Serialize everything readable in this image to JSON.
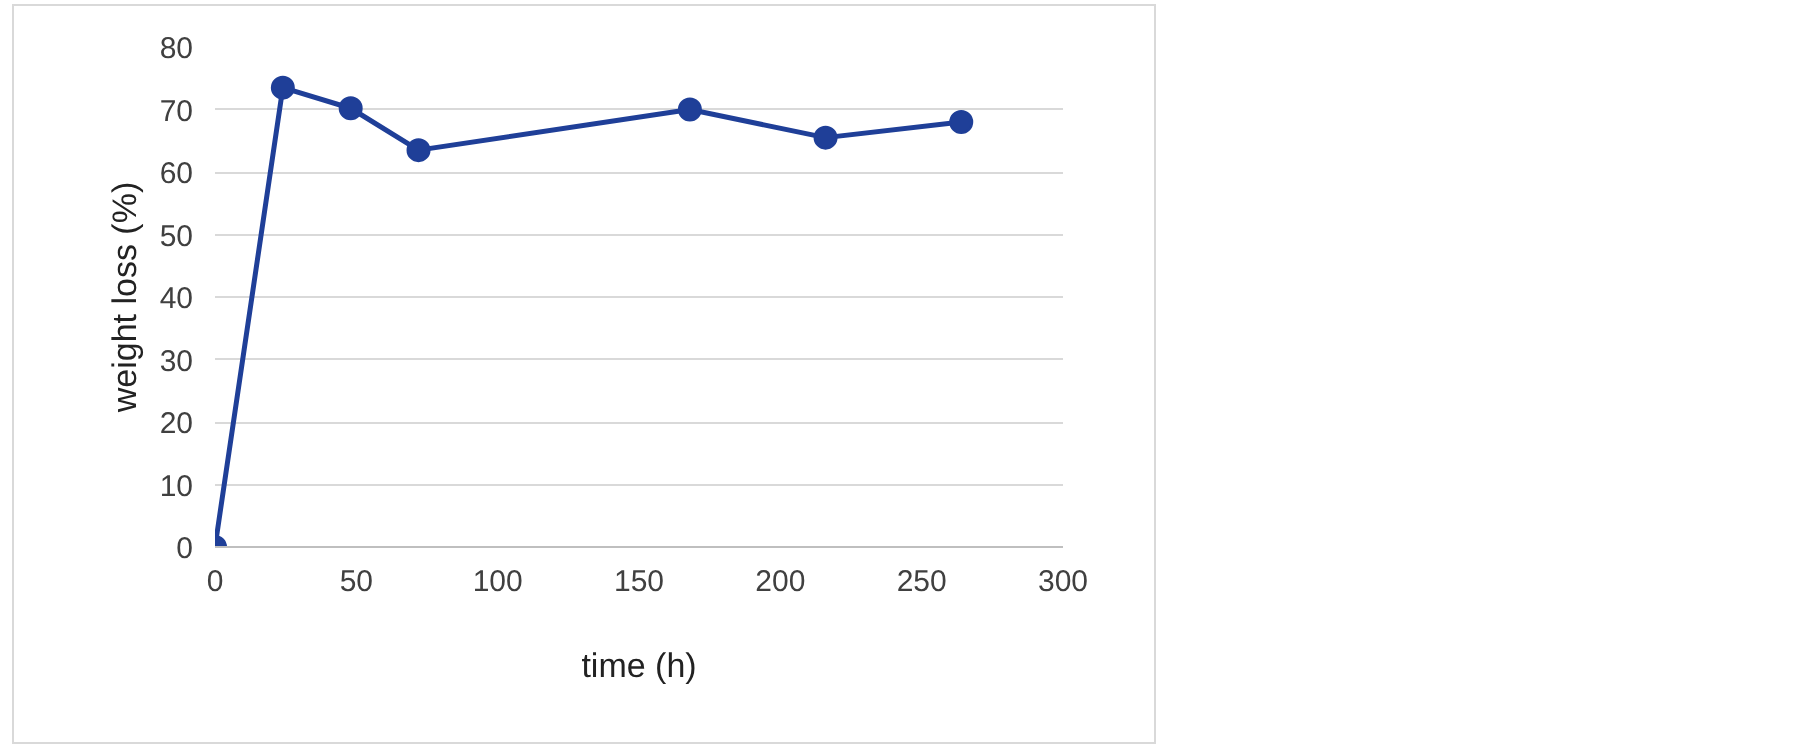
{
  "chart_data": {
    "type": "line",
    "xlabel": "time (h)",
    "ylabel": "weight loss (%)",
    "x": [
      0,
      24,
      48,
      72,
      168,
      216,
      264
    ],
    "series": [
      {
        "color": "#1f3f98",
        "values": [
          0,
          73.5,
          70.2,
          63.5,
          70,
          65.5,
          68
        ]
      }
    ],
    "xlim": [
      0,
      300
    ],
    "xticks": [
      0,
      50,
      100,
      150,
      200,
      250,
      300
    ],
    "ylim": [
      0,
      80
    ],
    "yticks": [
      0,
      10,
      20,
      30,
      40,
      50,
      60,
      70,
      80
    ],
    "grid": "y",
    "marker": "circle",
    "line_style": "solid"
  }
}
